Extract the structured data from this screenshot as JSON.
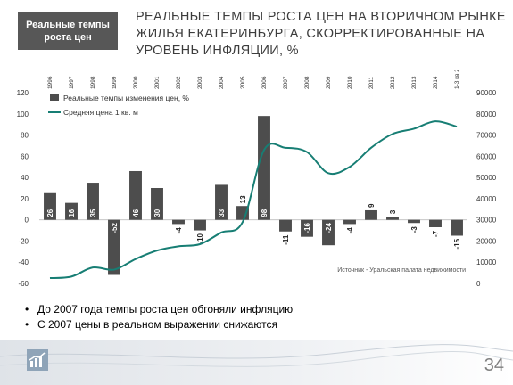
{
  "header": {
    "badge_line1": "Реальные темпы",
    "badge_line2": "роста цен",
    "title_line1": "РЕАЛЬНЫЕ ТЕМПЫ РОСТА ЦЕН НА ВТОРИЧНОМ РЫНКЕ",
    "title_line2": "ЖИЛЬЯ ЕКАТЕРИНБУРГА, СКОРРЕКТИРОВАННЫЕ НА",
    "title_line3": "УРОВЕНЬ ИНФЛЯЦИИ, %"
  },
  "bullets": [
    "До 2007 года темпы роста цен обгоняли инфляцию",
    "С 2007 цены в реальном выражении снижаются"
  ],
  "page_number": "34",
  "colors": {
    "bar": "#4d4d4d",
    "line": "#177e74",
    "badge_bg": "#575757"
  },
  "chart_data": {
    "type": "bar",
    "categories": [
      "1996",
      "1997",
      "1998",
      "1999",
      "2000",
      "2001",
      "2002",
      "2003",
      "2004",
      "2005",
      "2006",
      "2007",
      "2008",
      "2009",
      "2010",
      "2011",
      "2012",
      "2013",
      "2014",
      "1-3 кв 2015"
    ],
    "series": [
      {
        "name": "Реальные темпы изменения цен, %",
        "type": "bar",
        "axis": "left",
        "values": [
          26,
          16,
          35,
          -52,
          46,
          30,
          -4,
          -10,
          33,
          13,
          98,
          -11,
          -16,
          -24,
          -4,
          9,
          3,
          -3,
          -7,
          -15
        ],
        "labels": [
          "26",
          "16",
          "35",
          "-52",
          "46",
          "30",
          "-4",
          "-10",
          "33",
          "13",
          "98",
          "-11",
          "-16",
          "-24",
          "-4",
          "9",
          "3",
          "-3",
          "-7",
          "-15"
        ]
      },
      {
        "name": "Средняя цена 1 кв. м",
        "type": "line",
        "axis": "right",
        "values": [
          2500,
          3200,
          7500,
          6500,
          11500,
          15500,
          17500,
          18500,
          24000,
          29000,
          63000,
          64000,
          62000,
          52000,
          55000,
          64000,
          70500,
          73000,
          76500,
          74000
        ]
      }
    ],
    "y_left": {
      "min": -60,
      "max": 120,
      "ticks": [
        -60,
        -40,
        -20,
        0,
        20,
        40,
        60,
        80,
        100,
        120
      ]
    },
    "y_right": {
      "min": 0,
      "max": 90000,
      "ticks": [
        0,
        10000,
        20000,
        30000,
        40000,
        50000,
        60000,
        70000,
        80000,
        90000
      ]
    },
    "source_note": "Источник - Уральская палата недвижимости",
    "legend_position": "top-left",
    "grid": false
  }
}
